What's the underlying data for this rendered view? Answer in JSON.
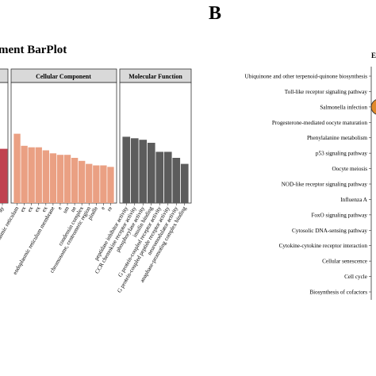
{
  "panel_b_letter": "B",
  "chart_data": [
    {
      "type": "bar",
      "title": "ment BarPlot",
      "facets": [
        {
          "name": "",
          "color": "#c0424f",
          "values": [
            18
          ],
          "categories": [
            "ay"
          ]
        },
        {
          "name": "Cellular Component",
          "color": "#eaa083",
          "categories": [
            "on of endoplasmic reticulum",
            "ex",
            "ex",
            "ex",
            "ex",
            "endoplasmic reticulum membrane",
            "e",
            "sm",
            "ne",
            "condensin complex",
            "chromosome, centromeric region",
            "pindle",
            "e",
            "re"
          ],
          "values": [
            23,
            19,
            18.5,
            18.5,
            17.5,
            16.5,
            16,
            16,
            15,
            14,
            13,
            12.5,
            12.5,
            12
          ]
        },
        {
          "name": "Molecular Function",
          "color": "#5c5c5c",
          "categories": [
            "peptidase inhibitor activity",
            "CCR chemokine receptor activity",
            "phosphorylase activity",
            "insulin binding",
            "G protein-coupled receptor activity",
            "G protein-coupled peptide receptor activity",
            "neuromodulator activity",
            "anaphase-promoting complex binding"
          ],
          "values": [
            22,
            21.5,
            21,
            20,
            17,
            17,
            15,
            13
          ]
        }
      ],
      "ylim": [
        0,
        40
      ]
    },
    {
      "type": "scatter",
      "title": "E",
      "categories": [
        "Ubiquinone and other terpenoid-quinone biosynthesis",
        "Toll-like receptor signaling pathway",
        "Salmonella infection",
        "Progesterone-mediated oocyte maturation",
        "Phenylalanine metabolism",
        "p53 signaling pathway",
        "Oocyte meiosis",
        "NOD-like receptor signaling pathway",
        "Influenza A",
        "FoxO signaling pathway",
        "Cytosolic DNA-sensing pathway",
        "Cytokine-cytokine receptor interaction",
        "Cellular senescence",
        "Cell cycle",
        "Biosynthesis of cofactors"
      ],
      "highlight": {
        "category": "Salmonella infection",
        "color": "#e0892b"
      }
    }
  ]
}
